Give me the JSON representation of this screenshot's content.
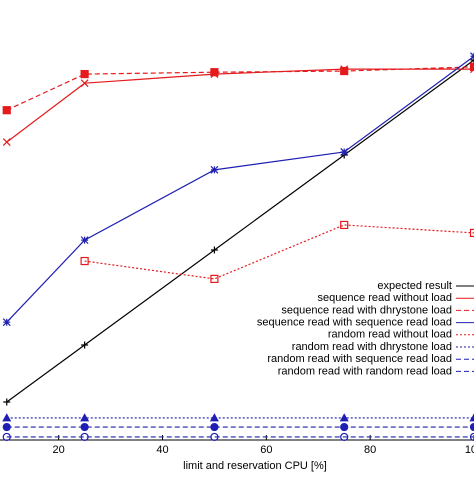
{
  "chart_data": {
    "type": "line",
    "x_label": "limit and reservation CPU [%]",
    "x": [
      10,
      25,
      50,
      75,
      100
    ],
    "xlim": [
      8.7,
      100
    ],
    "xticks": [
      20,
      40,
      60,
      80,
      100
    ],
    "ylim": [
      0,
      115.8
    ],
    "series": [
      {
        "name": "expected result",
        "color": "#000000",
        "dash": "solid",
        "marker": "plus",
        "values": [
          10,
          25,
          50,
          75,
          100
        ]
      },
      {
        "name": "sequence read without load",
        "color": "#e41a1c",
        "dash": "solid",
        "marker": "x",
        "values": [
          78.4,
          93.9,
          96.3,
          97.6,
          97.6
        ]
      },
      {
        "name": "sequence read  with dhrystone load",
        "color": "#e41a1c",
        "dash": "dashed",
        "marker": "square-filled",
        "values": [
          86.8,
          96.3,
          96.8,
          97.1,
          98.2
        ]
      },
      {
        "name": "sequence read with sequence read load",
        "color": "#1f1fb4",
        "dash": "solid",
        "marker": "star",
        "values": [
          31,
          52.6,
          71.1,
          75.8,
          101
        ]
      },
      {
        "name": "random read without load",
        "color": "#e41a1c",
        "dash": "dotted",
        "marker": "square-open",
        "values": [
          null,
          47.1,
          42.4,
          56.6,
          54.5
        ]
      },
      {
        "name": "random read with dhrystone load",
        "color": "#1f1fb4",
        "dash": "dotted",
        "marker": "triangle",
        "values": [
          5.8,
          5.8,
          5.8,
          5.8,
          5.8
        ]
      },
      {
        "name": "random read with sequence read load",
        "color": "#1f1fb4",
        "dash": "dashed",
        "marker": "circle-filled",
        "values": [
          3.4,
          3.4,
          3.4,
          3.4,
          3.4
        ]
      },
      {
        "name": "random read with random read load",
        "color": "#1f1fb4",
        "dash": "dashed",
        "marker": "circle-open",
        "values": [
          0.8,
          0.8,
          0.8,
          0.8,
          0.8
        ]
      }
    ]
  }
}
